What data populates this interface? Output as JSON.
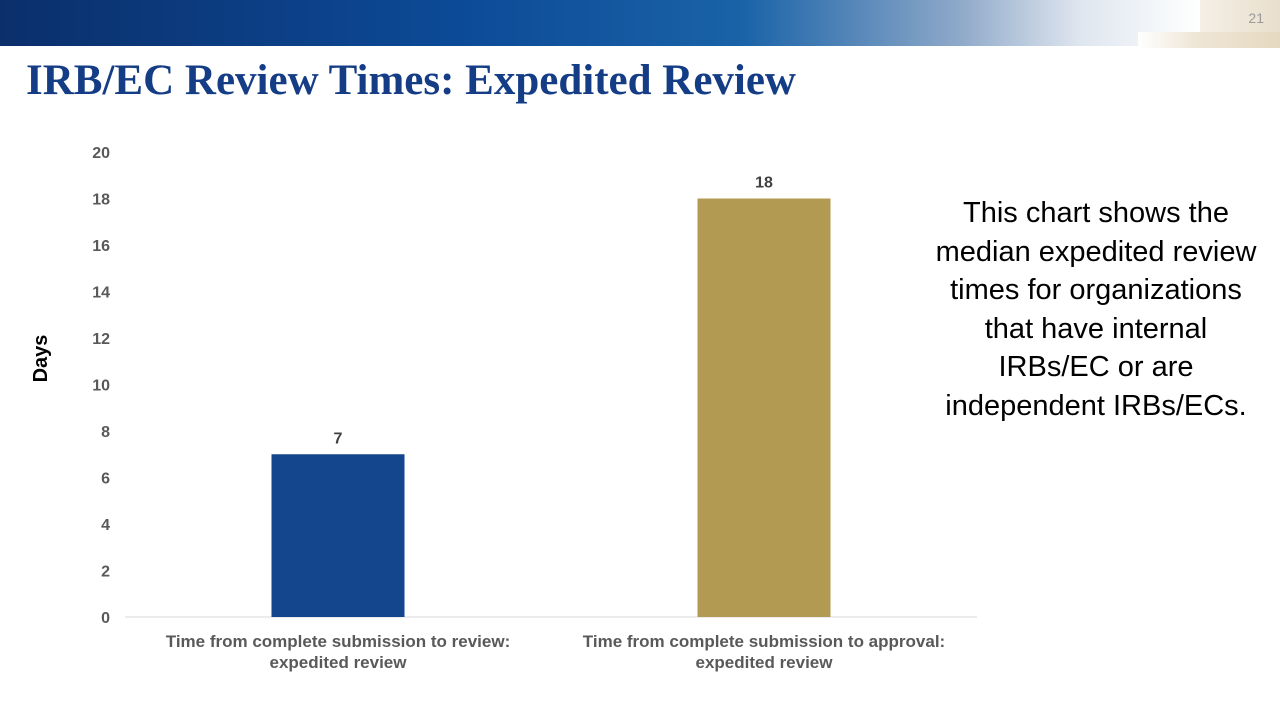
{
  "slide": {
    "number": "21",
    "title": "IRB/EC Review Times: Expedited Review"
  },
  "callout": {
    "text": "This chart shows the median expedited review times for organizations that have internal IRBs/EC or are independent IRBs/ECs."
  },
  "colors": {
    "header_blue": "#0c4a97",
    "title_blue": "#143d86",
    "bar_blue": "#13468c",
    "bar_gold": "#b39a52",
    "axis_text": "#595959"
  },
  "chart_data": {
    "type": "bar",
    "title": "",
    "xlabel": "",
    "ylabel": "Days",
    "ylim": [
      0,
      20
    ],
    "yticks": [
      0,
      2,
      4,
      6,
      8,
      10,
      12,
      14,
      16,
      18,
      20
    ],
    "grid": false,
    "legend": "none",
    "categories": [
      [
        "Time from complete submission to review:",
        "expedited review"
      ],
      [
        "Time from complete submission to approval:",
        "expedited review"
      ]
    ],
    "values": [
      7,
      18
    ],
    "bar_colors": [
      "#13468c",
      "#b39a52"
    ],
    "data_labels": [
      "7",
      "18"
    ]
  }
}
